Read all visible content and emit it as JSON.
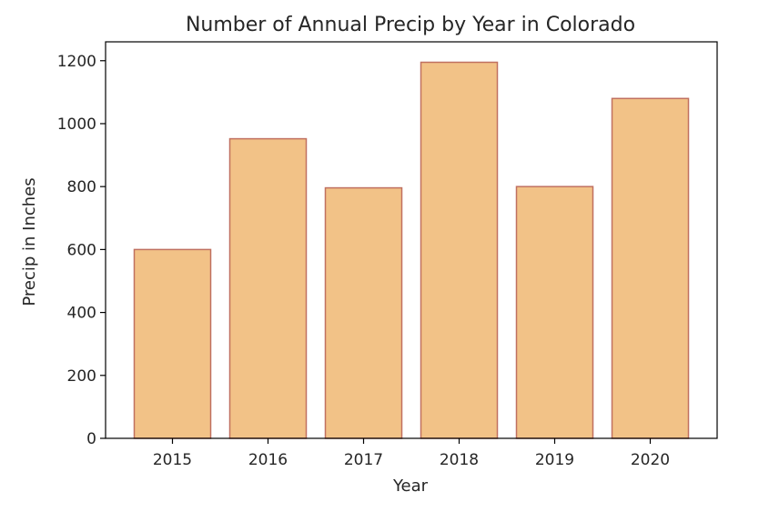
{
  "chart_data": {
    "type": "bar",
    "title": "Number of Annual Precip by Year in Colorado",
    "xlabel": "Year",
    "ylabel": "Precip in Inches",
    "categories": [
      "2015",
      "2016",
      "2017",
      "2018",
      "2019",
      "2020"
    ],
    "values": [
      600,
      952,
      796,
      1195,
      800,
      1080
    ],
    "ylim": [
      0,
      1260
    ],
    "yticks": [
      0,
      200,
      400,
      600,
      800,
      1000,
      1200
    ],
    "grid": false,
    "bar_color": "#f2c287",
    "bar_edge_color": "#c07060"
  }
}
